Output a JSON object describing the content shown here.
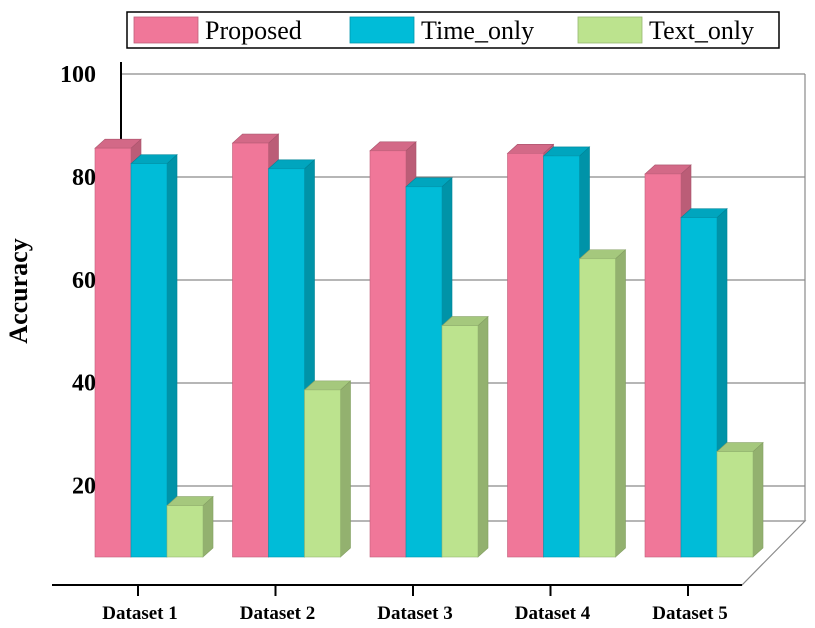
{
  "chart_data": {
    "type": "bar",
    "title": "",
    "xlabel": "",
    "ylabel": "Accuracy",
    "ylim": [
      10,
      100
    ],
    "yticks": [
      20,
      40,
      60,
      80,
      100
    ],
    "grid": true,
    "legend_position": "top",
    "categories": [
      "Dataset 1",
      "Dataset 2",
      "Dataset 3",
      "Dataset 4",
      "Dataset 5"
    ],
    "series": [
      {
        "name": "Proposed",
        "color": "#F07799",
        "values": [
          89.5,
          90.5,
          89,
          88.5,
          84.5
        ]
      },
      {
        "name": "Time_only",
        "color": "#00BCD8",
        "values": [
          86.5,
          85.5,
          82,
          88,
          76
        ]
      },
      {
        "name": "Text_only",
        "color": "#BCE38E",
        "values": [
          20,
          42.5,
          55,
          68,
          30.5
        ]
      }
    ]
  }
}
